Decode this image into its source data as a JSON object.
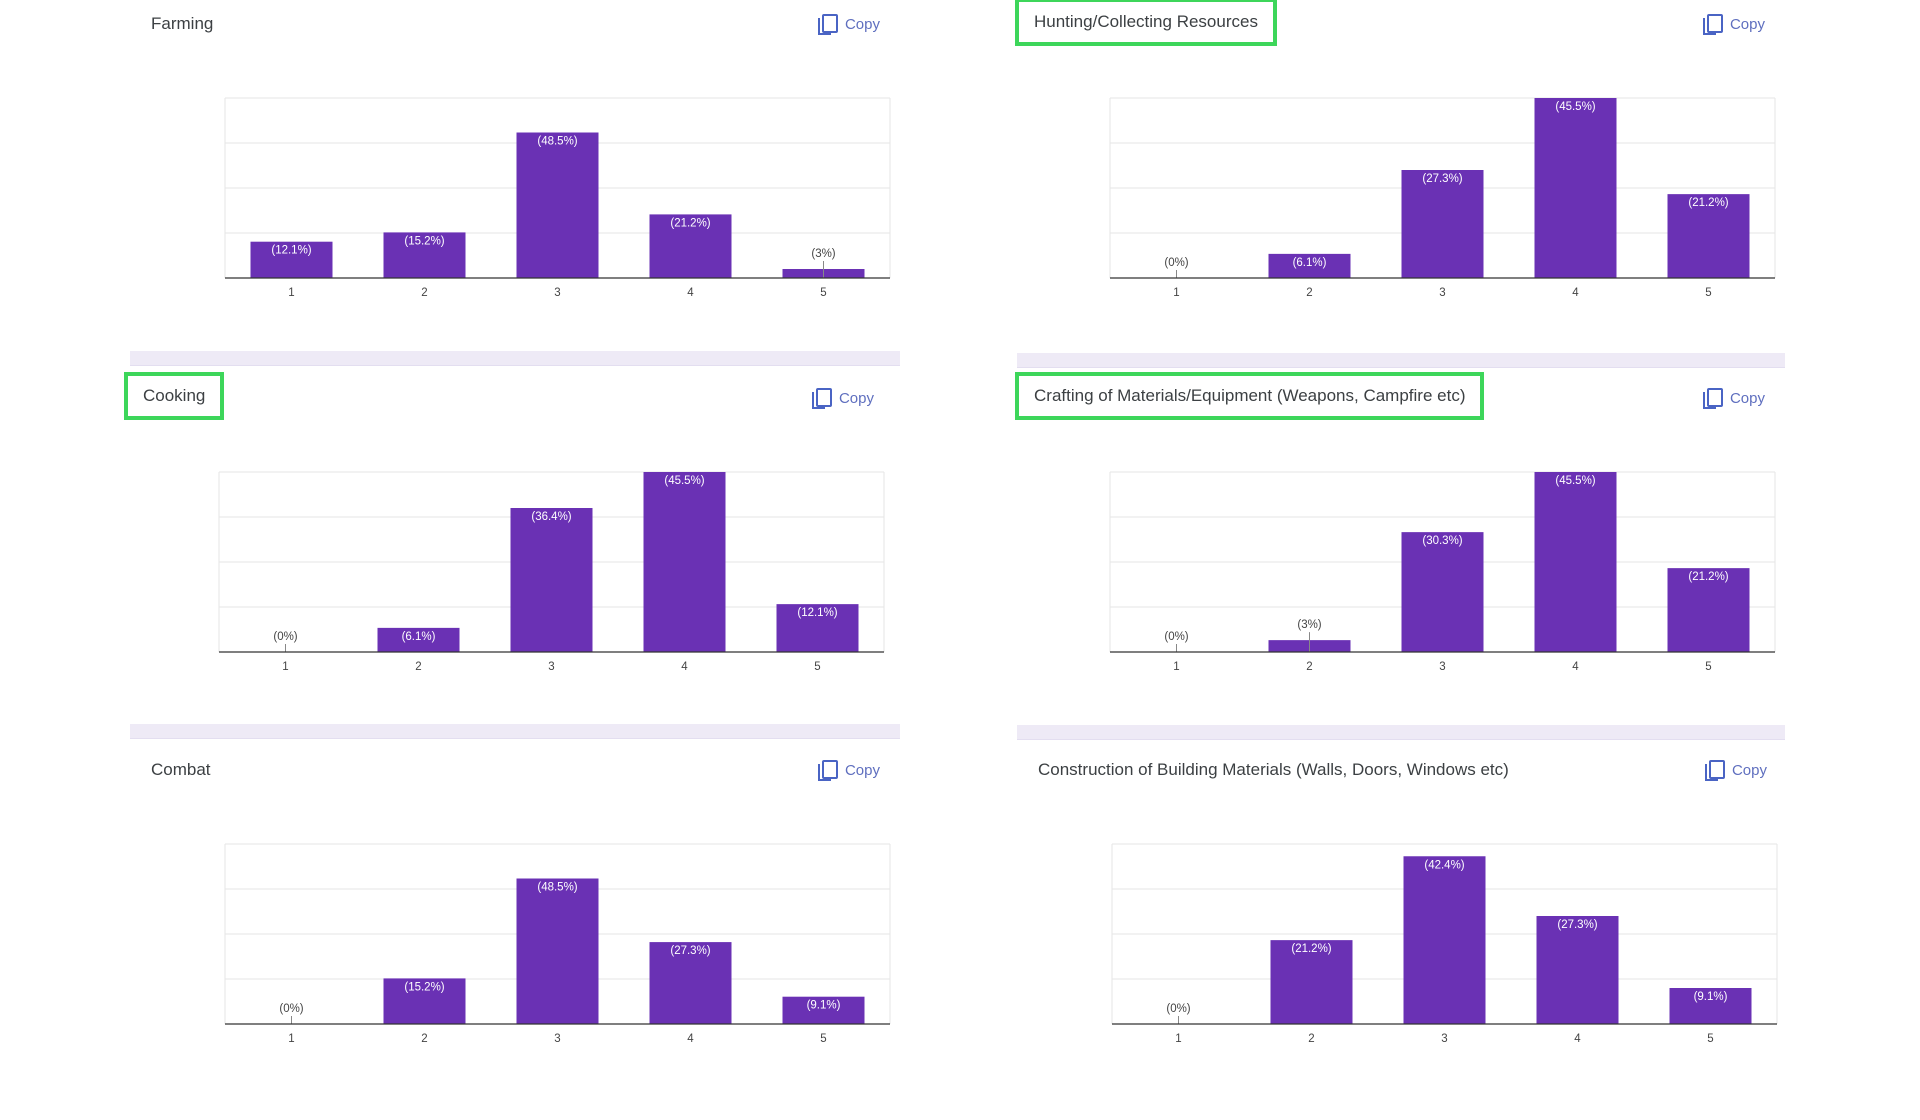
{
  "copy_label": "Copy",
  "colors": {
    "bar": "#6a31b4",
    "highlight": "#3dd65a",
    "grid": "#e6e6e6",
    "axis": "#333333"
  },
  "chart_data": [
    {
      "type": "bar",
      "title": "Farming",
      "highlighted": false,
      "categories": [
        "1",
        "2",
        "3",
        "4",
        "5"
      ],
      "values": [
        12.1,
        15.2,
        48.5,
        21.2,
        3
      ],
      "labels": [
        "(12.1%)",
        "(15.2%)",
        "(48.5%)",
        "(21.2%)",
        "(3%)"
      ],
      "ylim": [
        0,
        60
      ],
      "grid": true
    },
    {
      "type": "bar",
      "title": "Hunting/Collecting Resources",
      "highlighted": true,
      "categories": [
        "1",
        "2",
        "3",
        "4",
        "5"
      ],
      "values": [
        0,
        6.1,
        27.3,
        45.5,
        21.2
      ],
      "labels": [
        "(0%)",
        "(6.1%)",
        "(27.3%)",
        "(45.5%)",
        "(21.2%)"
      ],
      "ylim": [
        0,
        45.5
      ],
      "grid": true
    },
    {
      "type": "bar",
      "title": "Cooking",
      "highlighted": true,
      "categories": [
        "1",
        "2",
        "3",
        "4",
        "5"
      ],
      "values": [
        0,
        6.1,
        36.4,
        45.5,
        12.1
      ],
      "labels": [
        "(0%)",
        "(6.1%)",
        "(36.4%)",
        "(45.5%)",
        "(12.1%)"
      ],
      "ylim": [
        0,
        45.5
      ],
      "grid": true
    },
    {
      "type": "bar",
      "title": "Crafting of Materials/Equipment (Weapons, Campfire etc)",
      "highlighted": true,
      "categories": [
        "1",
        "2",
        "3",
        "4",
        "5"
      ],
      "values": [
        0,
        3,
        30.3,
        45.5,
        21.2
      ],
      "labels": [
        "(0%)",
        "(3%)",
        "(30.3%)",
        "(45.5%)",
        "(21.2%)"
      ],
      "ylim": [
        0,
        45.5
      ],
      "grid": true
    },
    {
      "type": "bar",
      "title": "Combat",
      "highlighted": false,
      "categories": [
        "1",
        "2",
        "3",
        "4",
        "5"
      ],
      "values": [
        0,
        15.2,
        48.5,
        27.3,
        9.1
      ],
      "labels": [
        "(0%)",
        "(15.2%)",
        "(48.5%)",
        "(27.3%)",
        "(9.1%)"
      ],
      "ylim": [
        0,
        60
      ],
      "grid": true
    },
    {
      "type": "bar",
      "title": "Construction of Building Materials (Walls, Doors, Windows etc)",
      "highlighted": false,
      "categories": [
        "1",
        "2",
        "3",
        "4",
        "5"
      ],
      "values": [
        0,
        21.2,
        42.4,
        27.3,
        9.1
      ],
      "labels": [
        "(0%)",
        "(21.2%)",
        "(42.4%)",
        "(27.3%)",
        "(9.1%)"
      ],
      "ylim": [
        0,
        45.5
      ],
      "grid": true
    }
  ]
}
